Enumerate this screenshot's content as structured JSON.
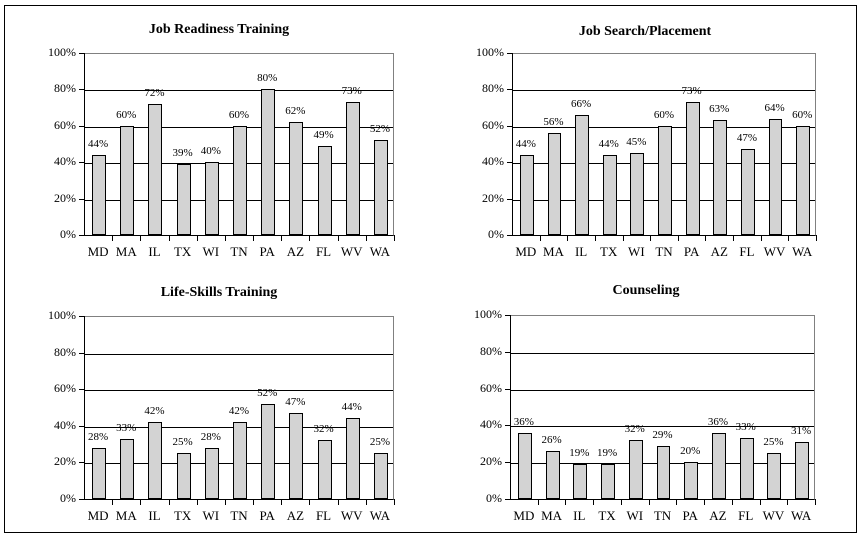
{
  "chart_data": [
    {
      "type": "bar",
      "title": "Job Readiness Training",
      "categories": [
        "MD",
        "MA",
        "IL",
        "TX",
        "WI",
        "TN",
        "PA",
        "AZ",
        "FL",
        "WV",
        "WA"
      ],
      "values": [
        44,
        60,
        72,
        39,
        40,
        60,
        80,
        62,
        49,
        73,
        52
      ],
      "value_labels": [
        "44%",
        "60%",
        "72%",
        "39%",
        "40%",
        "60%",
        "80%",
        "62%",
        "49%",
        "73%",
        "52%"
      ],
      "xlabel": "",
      "ylabel": "",
      "ylim": [
        0,
        100
      ],
      "yticks": [
        "0%",
        "20%",
        "40%",
        "60%",
        "80%",
        "100%"
      ],
      "grid": true,
      "legend": null
    },
    {
      "type": "bar",
      "title": "Job Search/Placement",
      "categories": [
        "MD",
        "MA",
        "IL",
        "TX",
        "WI",
        "TN",
        "PA",
        "AZ",
        "FL",
        "WV",
        "WA"
      ],
      "values": [
        44,
        56,
        66,
        44,
        45,
        60,
        73,
        63,
        47,
        64,
        60
      ],
      "value_labels": [
        "44%",
        "56%",
        "66%",
        "44%",
        "45%",
        "60%",
        "73%",
        "63%",
        "47%",
        "64%",
        "60%"
      ],
      "xlabel": "",
      "ylabel": "",
      "ylim": [
        0,
        100
      ],
      "yticks": [
        "0%",
        "20%",
        "40%",
        "60%",
        "80%",
        "100%"
      ],
      "grid": true,
      "legend": null
    },
    {
      "type": "bar",
      "title": "Life-Skills Training",
      "categories": [
        "MD",
        "MA",
        "IL",
        "TX",
        "WI",
        "TN",
        "PA",
        "AZ",
        "FL",
        "WV",
        "WA"
      ],
      "values": [
        28,
        33,
        42,
        25,
        28,
        42,
        52,
        47,
        32,
        44,
        25
      ],
      "value_labels": [
        "28%",
        "33%",
        "42%",
        "25%",
        "28%",
        "42%",
        "52%",
        "47%",
        "32%",
        "44%",
        "25%"
      ],
      "xlabel": "",
      "ylabel": "",
      "ylim": [
        0,
        100
      ],
      "yticks": [
        "0%",
        "20%",
        "40%",
        "60%",
        "80%",
        "100%"
      ],
      "grid": true,
      "legend": null
    },
    {
      "type": "bar",
      "title": "Counseling",
      "categories": [
        "MD",
        "MA",
        "IL",
        "TX",
        "WI",
        "TN",
        "PA",
        "AZ",
        "FL",
        "WV",
        "WA"
      ],
      "values": [
        36,
        26,
        19,
        19,
        32,
        29,
        20,
        36,
        33,
        25,
        31
      ],
      "value_labels": [
        "36%",
        "26%",
        "19%",
        "19%",
        "32%",
        "29%",
        "20%",
        "36%",
        "33%",
        "25%",
        "31%"
      ],
      "xlabel": "",
      "ylabel": "",
      "ylim": [
        0,
        100
      ],
      "yticks": [
        "0%",
        "20%",
        "40%",
        "60%",
        "80%",
        "100%"
      ],
      "grid": true,
      "legend": null
    }
  ],
  "colors": {
    "bar_fill": "#e6e6e6",
    "bar_border": "#000000",
    "grid": "#000000",
    "plot_border": "#808080"
  }
}
